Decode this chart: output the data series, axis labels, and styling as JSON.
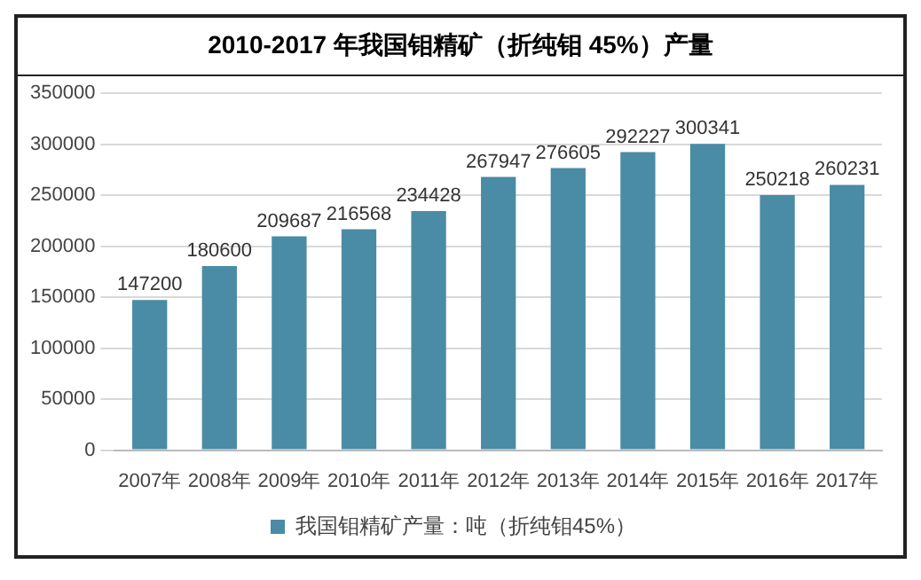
{
  "chart_data": {
    "type": "bar",
    "title": "2010-2017 年我国钼精矿（折纯钼 45%）产量",
    "categories": [
      "2007年",
      "2008年",
      "2009年",
      "2010年",
      "2011年",
      "2012年",
      "2013年",
      "2014年",
      "2015年",
      "2016年",
      "2017年"
    ],
    "series": [
      {
        "name": "我国钼精矿产量：吨（折纯钼45%）",
        "color": "#4a8ba6",
        "values": [
          147200,
          180600,
          209687,
          216568,
          234428,
          267947,
          276605,
          292227,
          300341,
          250218,
          260231
        ]
      }
    ],
    "ylim": [
      0,
      350000
    ],
    "yticks": [
      0,
      50000,
      100000,
      150000,
      200000,
      250000,
      300000,
      350000
    ],
    "grid": "y",
    "legend": "bottom",
    "data_labels": true
  }
}
